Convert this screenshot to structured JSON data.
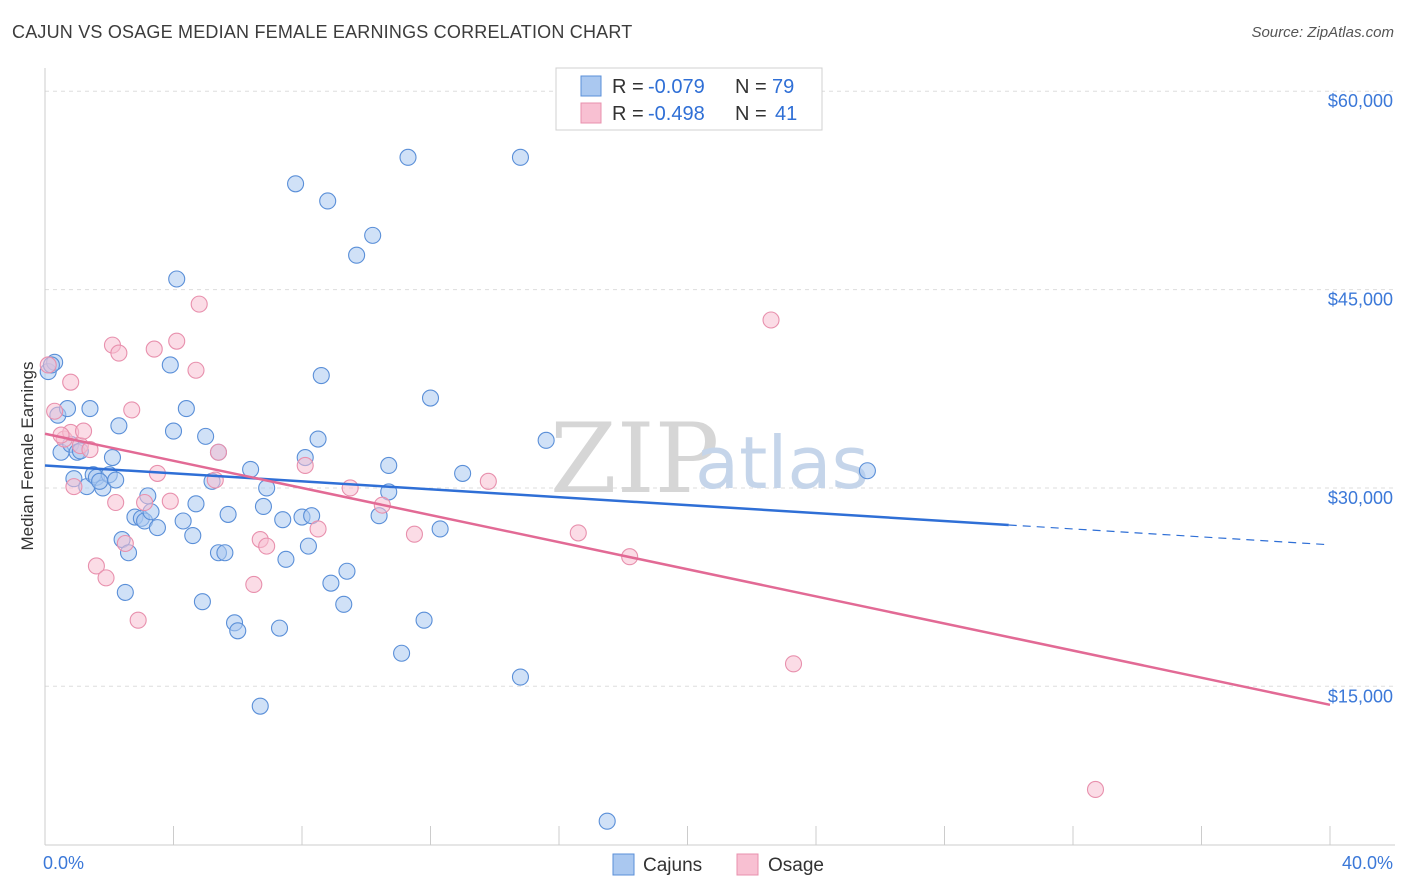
{
  "header": {
    "title": "CAJUN VS OSAGE MEDIAN FEMALE EARNINGS CORRELATION CHART",
    "source": "Source: ZipAtlas.com"
  },
  "colors": {
    "cajun_fill": "#aac8f0",
    "cajun_stroke": "#5a8fd8",
    "cajun_line": "#2f6fd6",
    "osage_fill": "#f8c0d2",
    "osage_stroke": "#e890ad",
    "osage_line": "#e26a95",
    "axis_label": "#3b78d8",
    "grid": "#dddddd"
  },
  "legend": {
    "rows": [
      {
        "r_label": "R =",
        "r_value": "-0.079",
        "n_label": "N =",
        "n_value": "79"
      },
      {
        "r_label": "R =",
        "r_value": "-0.498",
        "n_label": "N =",
        "n_value": "41"
      }
    ]
  },
  "bottom_legend": [
    "Cajuns",
    "Osage"
  ],
  "watermark": {
    "zip": "ZIP",
    "atlas": "atlas"
  },
  "chart_data": {
    "type": "scatter",
    "ylabel": "Median Female Earnings",
    "xlim": [
      0,
      40
    ],
    "ylim": [
      3000,
      61000
    ],
    "x_tick_labels": [
      "0.0%",
      "40.0%"
    ],
    "y_tick_labels": [
      "$60,000",
      "$45,000",
      "$30,000",
      "$15,000"
    ],
    "y_ticks": [
      60000,
      45000,
      30000,
      15000
    ],
    "series": [
      {
        "name": "Cajuns",
        "points": [
          [
            0.1,
            38800
          ],
          [
            0.3,
            39500
          ],
          [
            0.4,
            35500
          ],
          [
            0.5,
            32700
          ],
          [
            0.7,
            36000
          ],
          [
            0.8,
            33300
          ],
          [
            0.9,
            30700
          ],
          [
            1.0,
            32700
          ],
          [
            1.1,
            32800
          ],
          [
            1.3,
            30100
          ],
          [
            1.4,
            36000
          ],
          [
            1.5,
            31000
          ],
          [
            1.6,
            30800
          ],
          [
            1.8,
            30000
          ],
          [
            2.0,
            31000
          ],
          [
            2.1,
            32300
          ],
          [
            2.2,
            30600
          ],
          [
            2.3,
            34700
          ],
          [
            2.4,
            26100
          ],
          [
            2.5,
            22100
          ],
          [
            2.6,
            25100
          ],
          [
            2.8,
            27800
          ],
          [
            3.0,
            27700
          ],
          [
            3.1,
            27500
          ],
          [
            3.2,
            29400
          ],
          [
            3.3,
            28200
          ],
          [
            3.9,
            39300
          ],
          [
            4.0,
            34300
          ],
          [
            4.1,
            45800
          ],
          [
            4.3,
            27500
          ],
          [
            4.4,
            36000
          ],
          [
            4.6,
            26400
          ],
          [
            4.7,
            28800
          ],
          [
            4.9,
            21400
          ],
          [
            5.0,
            33900
          ],
          [
            5.2,
            30500
          ],
          [
            5.4,
            32700
          ],
          [
            5.4,
            25100
          ],
          [
            5.6,
            25100
          ],
          [
            5.7,
            28000
          ],
          [
            5.9,
            19800
          ],
          [
            6.0,
            19200
          ],
          [
            6.4,
            31400
          ],
          [
            6.7,
            13500
          ],
          [
            6.8,
            28600
          ],
          [
            6.9,
            30000
          ],
          [
            7.3,
            19400
          ],
          [
            7.4,
            27600
          ],
          [
            7.5,
            24600
          ],
          [
            7.8,
            53000
          ],
          [
            8.0,
            27800
          ],
          [
            8.1,
            32300
          ],
          [
            8.2,
            25600
          ],
          [
            8.3,
            27900
          ],
          [
            8.5,
            33700
          ],
          [
            8.6,
            38500
          ],
          [
            8.8,
            51700
          ],
          [
            8.9,
            22800
          ],
          [
            9.3,
            21200
          ],
          [
            9.4,
            23700
          ],
          [
            9.7,
            47600
          ],
          [
            10.2,
            49100
          ],
          [
            10.4,
            27900
          ],
          [
            10.7,
            31700
          ],
          [
            10.7,
            29700
          ],
          [
            11.1,
            17500
          ],
          [
            11.3,
            55000
          ],
          [
            11.8,
            20000
          ],
          [
            12.0,
            36800
          ],
          [
            12.3,
            26900
          ],
          [
            13.0,
            31100
          ],
          [
            14.8,
            55000
          ],
          [
            14.8,
            15700
          ],
          [
            15.6,
            33600
          ],
          [
            17.5,
            4800
          ],
          [
            25.6,
            31300
          ],
          [
            0.2,
            39300
          ],
          [
            1.7,
            30500
          ],
          [
            3.5,
            27000
          ]
        ],
        "trend": {
          "x": [
            0,
            30
          ],
          "y": [
            31700,
            27200
          ],
          "dashed_to": [
            40,
            25700
          ]
        }
      },
      {
        "name": "Osage",
        "points": [
          [
            0.1,
            39300
          ],
          [
            0.3,
            35800
          ],
          [
            0.6,
            33700
          ],
          [
            0.8,
            34200
          ],
          [
            0.8,
            38000
          ],
          [
            0.9,
            30100
          ],
          [
            1.1,
            33200
          ],
          [
            1.2,
            34300
          ],
          [
            1.4,
            32900
          ],
          [
            1.6,
            24100
          ],
          [
            1.9,
            23200
          ],
          [
            2.1,
            40800
          ],
          [
            2.2,
            28900
          ],
          [
            2.3,
            40200
          ],
          [
            2.5,
            25800
          ],
          [
            2.7,
            35900
          ],
          [
            2.9,
            20000
          ],
          [
            3.1,
            28900
          ],
          [
            3.4,
            40500
          ],
          [
            3.5,
            31100
          ],
          [
            3.9,
            29000
          ],
          [
            4.1,
            41100
          ],
          [
            4.7,
            38900
          ],
          [
            4.8,
            43900
          ],
          [
            5.3,
            30600
          ],
          [
            5.4,
            32700
          ],
          [
            6.5,
            22700
          ],
          [
            6.7,
            26100
          ],
          [
            6.9,
            25600
          ],
          [
            8.1,
            31700
          ],
          [
            8.5,
            26900
          ],
          [
            9.5,
            30000
          ],
          [
            10.5,
            28700
          ],
          [
            11.5,
            26500
          ],
          [
            13.8,
            30500
          ],
          [
            16.6,
            26600
          ],
          [
            18.2,
            24800
          ],
          [
            22.6,
            42700
          ],
          [
            23.3,
            16700
          ],
          [
            32.7,
            7200
          ],
          [
            0.5,
            34000
          ]
        ],
        "trend": {
          "x": [
            0,
            40
          ],
          "y": [
            34100,
            13600
          ]
        }
      }
    ]
  }
}
